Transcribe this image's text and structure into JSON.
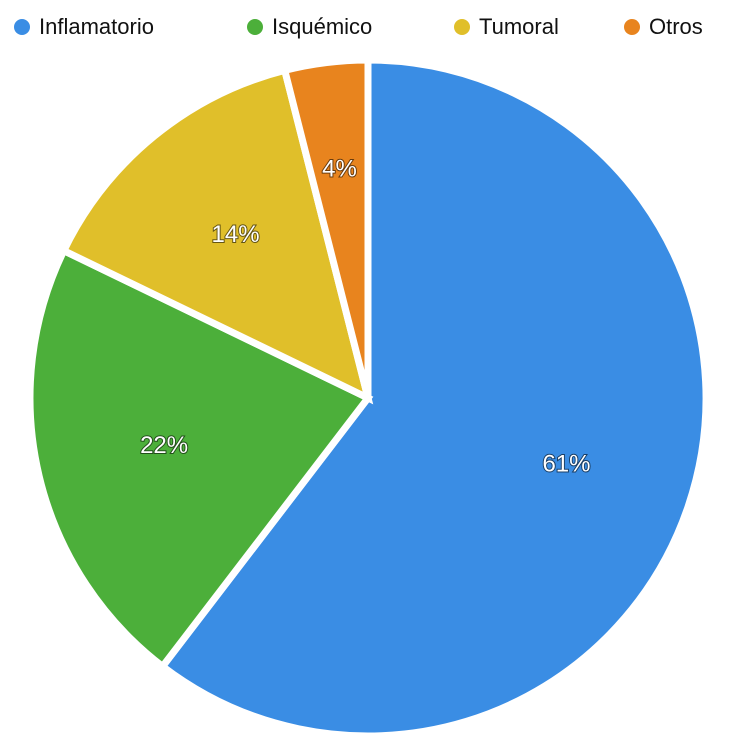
{
  "chart_data": {
    "type": "pie",
    "categories": [
      "Inflamatorio",
      "Isquémico",
      "Tumoral",
      "Otros"
    ],
    "values": [
      61,
      22,
      14,
      4
    ],
    "value_labels": [
      "61%",
      "22%",
      "14%",
      "4%"
    ],
    "colors": [
      "#3a8de4",
      "#4caf3a",
      "#e0bf2a",
      "#e8841e"
    ],
    "legend": "top"
  }
}
